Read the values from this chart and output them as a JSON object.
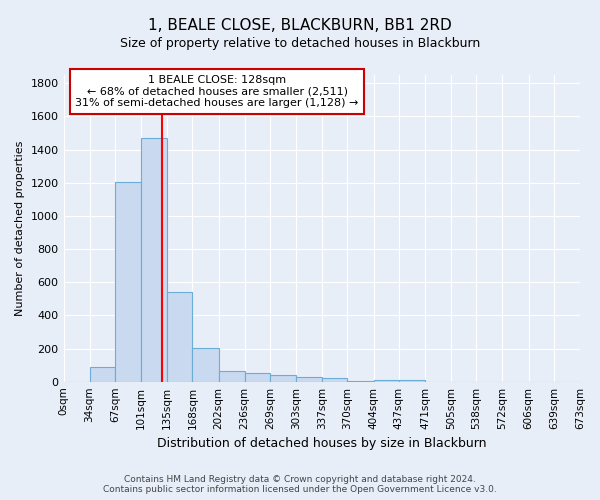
{
  "title": "1, BEALE CLOSE, BLACKBURN, BB1 2RD",
  "subtitle": "Size of property relative to detached houses in Blackburn",
  "xlabel": "Distribution of detached houses by size in Blackburn",
  "ylabel": "Number of detached properties",
  "bin_labels": [
    "0sqm",
    "34sqm",
    "67sqm",
    "101sqm",
    "135sqm",
    "168sqm",
    "202sqm",
    "236sqm",
    "269sqm",
    "303sqm",
    "337sqm",
    "370sqm",
    "404sqm",
    "437sqm",
    "471sqm",
    "505sqm",
    "538sqm",
    "572sqm",
    "606sqm",
    "639sqm",
    "673sqm"
  ],
  "bar_values": [
    0,
    90,
    1205,
    1470,
    540,
    205,
    65,
    50,
    38,
    28,
    20,
    5,
    12,
    10,
    0,
    0,
    0,
    0,
    0,
    0
  ],
  "bar_color": "#c8d9f0",
  "bar_edge_color": "#6aaed6",
  "background_color": "#e8eef8",
  "plot_bg_color": "#e8eef8",
  "grid_color": "#ffffff",
  "property_size": 128,
  "red_line_x": 128,
  "annotation_line1": "1 BEALE CLOSE: 128sqm",
  "annotation_line2": "← 68% of detached houses are smaller (2,511)",
  "annotation_line3": "31% of semi-detached houses are larger (1,128) →",
  "annotation_box_color": "#ffffff",
  "annotation_box_edge": "#cc0000",
  "ylim": [
    0,
    1850
  ],
  "yticks": [
    0,
    200,
    400,
    600,
    800,
    1000,
    1200,
    1400,
    1600,
    1800
  ],
  "footer_line1": "Contains HM Land Registry data © Crown copyright and database right 2024.",
  "footer_line2": "Contains public sector information licensed under the Open Government Licence v3.0."
}
